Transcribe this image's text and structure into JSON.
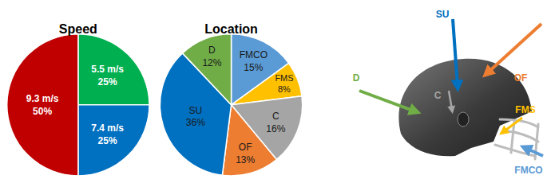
{
  "chart_data": [
    {
      "type": "pie",
      "title": "Speed",
      "categories": [
        "5.5 m/s",
        "7.4 m/s",
        "9.3 m/s"
      ],
      "values": [
        25,
        25,
        50
      ],
      "value_labels": [
        "25%",
        "25%",
        "50%"
      ],
      "colors": [
        "#00b050",
        "#0070c0",
        "#c00000"
      ],
      "data_labels": true
    },
    {
      "type": "pie",
      "title": "Location",
      "categories": [
        "FMCO",
        "FMS",
        "C",
        "OF",
        "SU",
        "D"
      ],
      "values": [
        15,
        8,
        16,
        13,
        36,
        12
      ],
      "value_labels": [
        "15%",
        "8%",
        "16%",
        "13%",
        "36%",
        "12%"
      ],
      "colors": [
        "#5b9bd5",
        "#ffc000",
        "#a5a5a5",
        "#ed7d31",
        "#0070c0",
        "#70ad47"
      ],
      "data_labels": true
    }
  ],
  "diagram": {
    "arrows": [
      {
        "label": "D",
        "color": "#70ad47"
      },
      {
        "label": "SU",
        "color": "#0070c0"
      },
      {
        "label": "OF",
        "color": "#ed7d31"
      },
      {
        "label": "C",
        "color": "#a5a5a5"
      },
      {
        "label": "FMS",
        "color": "#ffc000"
      },
      {
        "label": "FMCO",
        "color": "#5b9bd5"
      }
    ]
  }
}
